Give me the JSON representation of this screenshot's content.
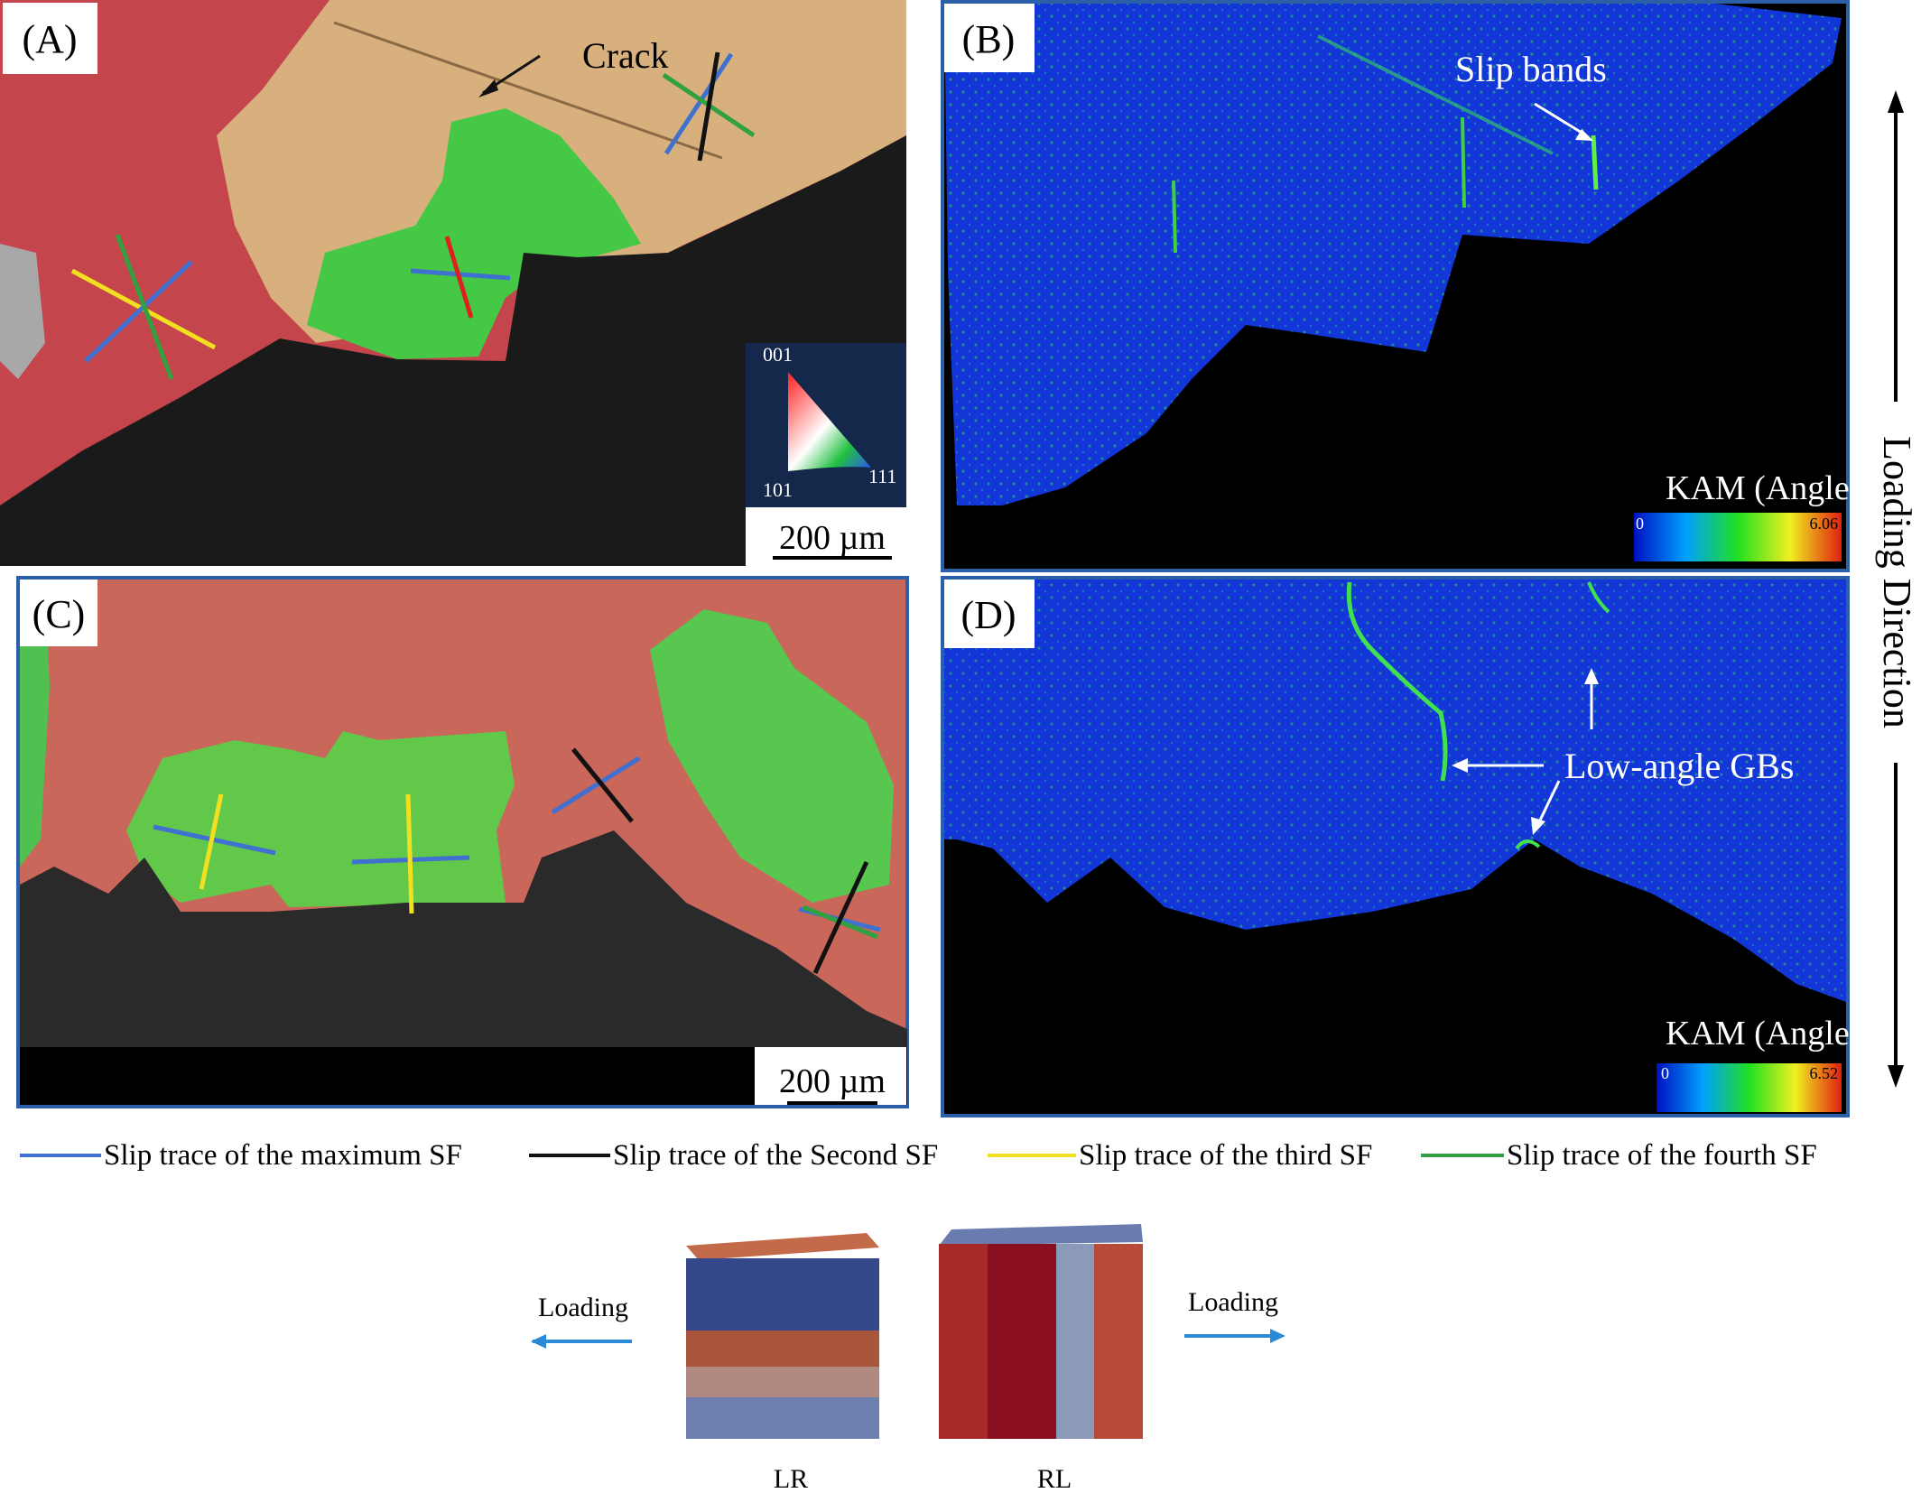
{
  "panels": [
    {
      "label": "(A)",
      "annotation": "Crack",
      "scale_bar": "200 µm",
      "ipf_labels": [
        "001",
        "101",
        "111"
      ]
    },
    {
      "label": "(B)",
      "annotation": "Slip bands",
      "colorbar_title": "KAM (Angle",
      "colorbar_min": "0",
      "colorbar_max": "6.06"
    },
    {
      "label": "(C)",
      "scale_bar": "200 µm"
    },
    {
      "label": "(D)",
      "annotation": "Low-angle GBs",
      "colorbar_title": "KAM (Angle",
      "colorbar_min": "0",
      "colorbar_max": "6.52"
    }
  ],
  "side_label": "Loading Direction",
  "legend": [
    "Slip trace of the maximum SF",
    "Slip trace of the Second SF",
    "Slip trace of the third SF",
    "Slip trace of the fourth SF"
  ],
  "cubes": {
    "left_loading": "Loading",
    "right_loading": "Loading",
    "labels": [
      "LR",
      "RL"
    ]
  }
}
